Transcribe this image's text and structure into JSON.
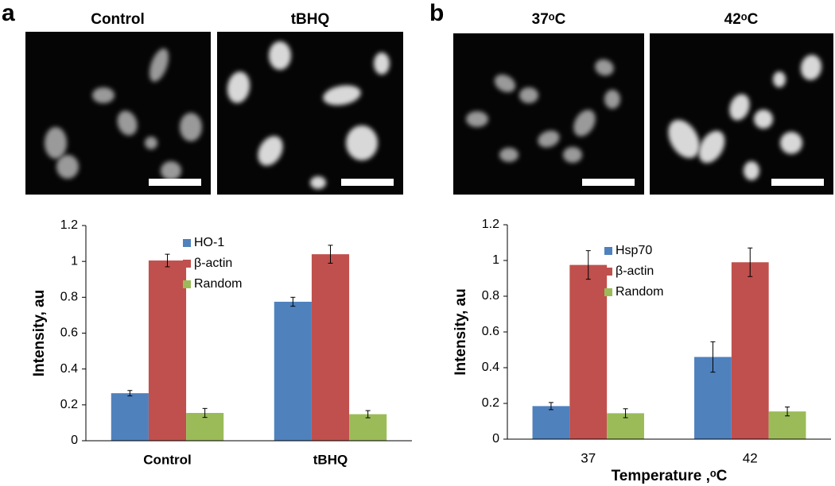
{
  "panels": [
    "a",
    "b"
  ],
  "images": [
    "Control",
    "tBHQ",
    "37ᵒC",
    "42ᵒC"
  ],
  "chart_data": [
    {
      "type": "bar",
      "ylabel": "Intensity, au",
      "categories": [
        "Control",
        "tBHQ"
      ],
      "series": [
        {
          "name": "HO-1",
          "color": "#4f81bd",
          "values": [
            0.265,
            0.775
          ],
          "errors": [
            0.015,
            0.025
          ]
        },
        {
          "name": "β-actin",
          "color": "#c0504d",
          "values": [
            1.005,
            1.04
          ],
          "errors": [
            0.035,
            0.05
          ]
        },
        {
          "name": "Random",
          "color": "#9bbb59",
          "values": [
            0.155,
            0.148
          ],
          "errors": [
            0.025,
            0.02
          ]
        }
      ],
      "ylim": [
        0,
        1.2
      ],
      "yticks": [
        0,
        0.2,
        0.4,
        0.6,
        0.8,
        1,
        1.2
      ]
    },
    {
      "type": "bar",
      "ylabel": "Intensity, au",
      "xlabel": "Temperature ,ᵒC",
      "categories": [
        "37",
        "42"
      ],
      "series": [
        {
          "name": "Hsp70",
          "color": "#4f81bd",
          "values": [
            0.185,
            0.46
          ],
          "errors": [
            0.02,
            0.085
          ]
        },
        {
          "name": "β-actin",
          "color": "#c0504d",
          "values": [
            0.975,
            0.99
          ],
          "errors": [
            0.08,
            0.08
          ]
        },
        {
          "name": "Random",
          "color": "#9bbb59",
          "values": [
            0.145,
            0.155
          ],
          "errors": [
            0.025,
            0.025
          ]
        }
      ],
      "ylim": [
        0,
        1.2
      ],
      "yticks": [
        0,
        0.2,
        0.4,
        0.6,
        0.8,
        1,
        1.2
      ]
    }
  ]
}
